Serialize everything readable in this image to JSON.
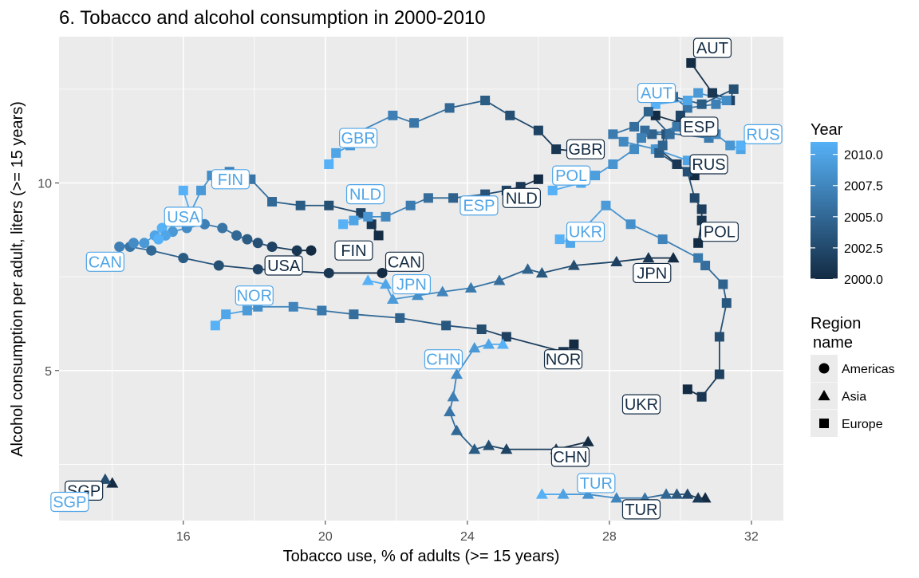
{
  "chart_data": {
    "type": "scatter",
    "title": "6. Tobacco and alcohol consumption in 2000-2010",
    "xlabel": "Tobacco use, % of adults (>= 15 years)",
    "ylabel": "Alcohol consumption per adult, liters (>= 15 years)",
    "xlim": [
      12.5,
      32.9
    ],
    "ylim": [
      1.0,
      13.9
    ],
    "xticks": [
      16,
      20,
      24,
      28,
      32
    ],
    "yticks": [
      5,
      10
    ],
    "grid": true,
    "legend_position": "right",
    "legend": {
      "year_title": "Year",
      "year_ticks": [
        "2010.0",
        "2007.5",
        "2005.0",
        "2002.5",
        "2000.0"
      ],
      "year_range": [
        2000,
        2011
      ],
      "region_title_line1": "Region",
      "region_title_line2": "name",
      "regions": [
        {
          "name": "Americas",
          "shape": "circle"
        },
        {
          "name": "Asia",
          "shape": "triangle"
        },
        {
          "name": "Europe",
          "shape": "square"
        }
      ]
    },
    "colors": {
      "start": "#132b43",
      "end": "#56b1f7",
      "panel": "#ebebeb",
      "grid": "#ffffff"
    },
    "series": [
      {
        "label": "AUT",
        "shape": "square",
        "points": [
          [
            30.3,
            13.2
          ],
          [
            30.9,
            12.4
          ],
          [
            31.4,
            12.2
          ],
          [
            31.5,
            12.5
          ],
          [
            30.6,
            12.1
          ],
          [
            29.8,
            12.3
          ],
          [
            30.2,
            12.0
          ],
          [
            31.0,
            12.1
          ],
          [
            31.3,
            12.2
          ],
          [
            30.5,
            12.4
          ],
          [
            30.2,
            12.2
          ],
          [
            29.3,
            12.1
          ]
        ]
      },
      {
        "label": "RUS",
        "shape": "square",
        "points": [
          [
            30.4,
            10.2
          ],
          [
            29.9,
            10.5
          ],
          [
            29.4,
            10.9
          ],
          [
            29.6,
            11.3
          ],
          [
            29.2,
            11.3
          ],
          [
            29.0,
            11.4
          ],
          [
            30.8,
            11.2
          ],
          [
            31.0,
            11.3
          ],
          [
            31.4,
            11.0
          ],
          [
            31.7,
            10.9
          ],
          [
            31.7,
            11.0
          ]
        ]
      },
      {
        "label": "ESP",
        "shape": "square",
        "points": [
          [
            29.3,
            11.8
          ],
          [
            30.0,
            11.6
          ],
          [
            30.0,
            11.8
          ],
          [
            29.7,
            11.3
          ],
          [
            29.1,
            11.9
          ],
          [
            28.7,
            11.5
          ],
          [
            28.1,
            11.3
          ],
          [
            28.4,
            11.1
          ],
          [
            29.3,
            10.9
          ],
          [
            30.2,
            10.6
          ],
          [
            30.7,
            10.4
          ]
        ]
      },
      {
        "label": "GBR",
        "shape": "square",
        "points": [
          [
            27.5,
            10.8
          ],
          [
            26.5,
            10.9
          ],
          [
            26.0,
            11.4
          ],
          [
            25.2,
            11.8
          ],
          [
            24.5,
            12.2
          ],
          [
            23.5,
            12.0
          ],
          [
            22.5,
            11.6
          ],
          [
            21.9,
            11.8
          ],
          [
            20.8,
            11.3
          ],
          [
            20.7,
            11.0
          ],
          [
            20.3,
            10.8
          ],
          [
            20.1,
            10.5
          ]
        ]
      },
      {
        "label": "POL",
        "shape": "square",
        "points": [
          [
            30.5,
            8.4
          ],
          [
            30.6,
            9.0
          ],
          [
            30.6,
            9.3
          ],
          [
            30.4,
            9.6
          ],
          [
            30.2,
            10.3
          ],
          [
            29.4,
            10.8
          ],
          [
            29.5,
            11.0
          ],
          [
            29.7,
            11.3
          ],
          [
            29.9,
            11.5
          ],
          [
            28.9,
            11.2
          ],
          [
            28.7,
            10.9
          ],
          [
            28.1,
            10.5
          ],
          [
            27.6,
            10.2
          ],
          [
            27.2,
            10.0
          ],
          [
            26.4,
            9.8
          ]
        ]
      },
      {
        "label": "FIN",
        "shape": "square",
        "points": [
          [
            21.5,
            8.6
          ],
          [
            21.3,
            8.9
          ],
          [
            21.0,
            9.2
          ],
          [
            20.1,
            9.4
          ],
          [
            19.3,
            9.4
          ],
          [
            18.5,
            9.5
          ],
          [
            17.9,
            10.1
          ],
          [
            17.3,
            10.3
          ],
          [
            16.8,
            10.2
          ],
          [
            16.5,
            9.8
          ],
          [
            16.2,
            9.2
          ],
          [
            16.0,
            9.8
          ]
        ]
      },
      {
        "label": "NLD",
        "shape": "square",
        "points": [
          [
            26.0,
            10.1
          ],
          [
            25.5,
            9.9
          ],
          [
            25.1,
            9.8
          ],
          [
            24.5,
            9.7
          ],
          [
            23.6,
            9.6
          ],
          [
            22.9,
            9.6
          ],
          [
            22.4,
            9.4
          ],
          [
            21.7,
            9.1
          ],
          [
            21.2,
            9.1
          ],
          [
            20.8,
            9.0
          ],
          [
            20.5,
            8.9
          ]
        ]
      },
      {
        "label": "NOR",
        "shape": "square",
        "points": [
          [
            27.0,
            5.7
          ],
          [
            26.7,
            5.5
          ],
          [
            25.1,
            5.9
          ],
          [
            24.4,
            6.1
          ],
          [
            23.4,
            6.2
          ],
          [
            22.1,
            6.4
          ],
          [
            20.8,
            6.5
          ],
          [
            19.9,
            6.6
          ],
          [
            19.1,
            6.7
          ],
          [
            18.1,
            6.7
          ],
          [
            17.8,
            6.6
          ],
          [
            17.2,
            6.5
          ],
          [
            16.9,
            6.2
          ]
        ]
      },
      {
        "label": "UKR",
        "shape": "square",
        "points": [
          [
            30.2,
            4.5
          ],
          [
            30.6,
            4.3
          ],
          [
            31.1,
            4.9
          ],
          [
            31.1,
            5.9
          ],
          [
            31.3,
            6.8
          ],
          [
            31.2,
            7.3
          ],
          [
            30.7,
            7.8
          ],
          [
            30.5,
            8.0
          ],
          [
            29.5,
            8.5
          ],
          [
            28.6,
            8.9
          ],
          [
            27.9,
            9.4
          ],
          [
            26.9,
            8.4
          ],
          [
            26.6,
            8.5
          ]
        ]
      },
      {
        "label": "TUR",
        "shape": "triangle",
        "points": [
          [
            30.7,
            1.6
          ],
          [
            30.5,
            1.6
          ],
          [
            30.2,
            1.7
          ],
          [
            29.9,
            1.7
          ],
          [
            29.6,
            1.7
          ],
          [
            29.0,
            1.6
          ],
          [
            28.2,
            1.6
          ],
          [
            27.4,
            1.7
          ],
          [
            26.7,
            1.7
          ],
          [
            26.1,
            1.7
          ]
        ]
      },
      {
        "label": "JPN",
        "shape": "triangle",
        "points": [
          [
            29.8,
            8.0
          ],
          [
            29.1,
            8.0
          ],
          [
            28.2,
            7.9
          ],
          [
            27.0,
            7.8
          ],
          [
            26.1,
            7.6
          ],
          [
            25.7,
            7.7
          ],
          [
            24.9,
            7.4
          ],
          [
            24.1,
            7.2
          ],
          [
            23.3,
            7.1
          ],
          [
            22.6,
            7.0
          ],
          [
            21.9,
            6.9
          ],
          [
            21.7,
            7.3
          ],
          [
            21.2,
            7.4
          ]
        ]
      },
      {
        "label": "CHN",
        "shape": "triangle",
        "points": [
          [
            27.4,
            3.1
          ],
          [
            26.5,
            2.9
          ],
          [
            25.1,
            2.9
          ],
          [
            24.6,
            3.0
          ],
          [
            24.2,
            2.9
          ],
          [
            23.7,
            3.4
          ],
          [
            23.5,
            3.9
          ],
          [
            23.6,
            4.3
          ],
          [
            23.7,
            4.9
          ],
          [
            24.2,
            5.6
          ],
          [
            24.6,
            5.7
          ],
          [
            25.0,
            5.7
          ]
        ]
      },
      {
        "label": "SGP",
        "shape": "triangle",
        "points": [
          [
            14.0,
            2.0
          ],
          [
            13.8,
            2.1
          ],
          [
            13.1,
            1.7
          ],
          [
            12.6,
            1.6
          ],
          [
            12.9,
            1.8
          ]
        ]
      },
      {
        "label": "CAN",
        "shape": "circle",
        "points": [
          [
            21.6,
            7.6
          ],
          [
            20.1,
            7.6
          ],
          [
            18.1,
            7.7
          ],
          [
            17.0,
            7.8
          ],
          [
            16.0,
            8.0
          ],
          [
            15.1,
            8.2
          ],
          [
            14.5,
            8.3
          ],
          [
            14.2,
            8.3
          ],
          [
            14.6,
            8.4
          ],
          [
            14.9,
            8.4
          ],
          [
            15.2,
            8.6
          ],
          [
            15.4,
            8.8
          ]
        ]
      },
      {
        "label": "USA",
        "shape": "circle",
        "points": [
          [
            19.6,
            8.2
          ],
          [
            19.2,
            8.2
          ],
          [
            18.5,
            8.3
          ],
          [
            18.1,
            8.4
          ],
          [
            17.8,
            8.5
          ],
          [
            17.5,
            8.6
          ],
          [
            17.1,
            8.8
          ],
          [
            16.6,
            8.9
          ],
          [
            16.1,
            8.8
          ],
          [
            15.7,
            8.7
          ],
          [
            15.5,
            8.6
          ],
          [
            15.3,
            8.5
          ]
        ]
      }
    ],
    "labels": [
      {
        "text": "AUT",
        "x": 30.9,
        "y": 13.6,
        "year": 2000,
        "anchor": "middle"
      },
      {
        "text": "AUT",
        "x": 28.8,
        "y": 12.4,
        "year": 2010,
        "anchor": "start"
      },
      {
        "text": "RUS",
        "x": 31.8,
        "y": 11.3,
        "year": 2010,
        "anchor": "start"
      },
      {
        "text": "ESP",
        "x": 30.0,
        "y": 11.5,
        "year": 2000,
        "anchor": "start"
      },
      {
        "text": "RUS",
        "x": 30.8,
        "y": 10.5,
        "year": 2000,
        "anchor": "middle"
      },
      {
        "text": "GBR",
        "x": 26.8,
        "y": 10.9,
        "year": 2000,
        "anchor": "start"
      },
      {
        "text": "GBR",
        "x": 20.4,
        "y": 11.2,
        "year": 2010,
        "anchor": "start"
      },
      {
        "text": "POL",
        "x": 26.4,
        "y": 10.2,
        "year": 2010,
        "anchor": "start"
      },
      {
        "text": "POL",
        "x": 31.1,
        "y": 8.7,
        "year": 2000,
        "anchor": "middle"
      },
      {
        "text": "FIN",
        "x": 16.8,
        "y": 10.1,
        "year": 2010,
        "anchor": "start"
      },
      {
        "text": "FIN",
        "x": 20.8,
        "y": 8.2,
        "year": 2000,
        "anchor": "middle"
      },
      {
        "text": "NLD",
        "x": 20.6,
        "y": 9.7,
        "year": 2010,
        "anchor": "start"
      },
      {
        "text": "NLD",
        "x": 25.0,
        "y": 9.6,
        "year": 2000,
        "anchor": "start"
      },
      {
        "text": "ESP",
        "x": 23.8,
        "y": 9.4,
        "year": 2010,
        "anchor": "start"
      },
      {
        "text": "UKR",
        "x": 26.8,
        "y": 8.7,
        "year": 2010,
        "anchor": "start"
      },
      {
        "text": "UKR",
        "x": 28.9,
        "y": 4.1,
        "year": 2000,
        "anchor": "middle"
      },
      {
        "text": "USA",
        "x": 16.0,
        "y": 9.1,
        "year": 2010,
        "anchor": "middle"
      },
      {
        "text": "USA",
        "x": 18.3,
        "y": 7.8,
        "year": 2000,
        "anchor": "start"
      },
      {
        "text": "CAN",
        "x": 13.8,
        "y": 7.9,
        "year": 2010,
        "anchor": "middle"
      },
      {
        "text": "CAN",
        "x": 21.7,
        "y": 7.9,
        "year": 2000,
        "anchor": "start"
      },
      {
        "text": "NOR",
        "x": 18.0,
        "y": 7.0,
        "year": 2010,
        "anchor": "middle"
      },
      {
        "text": "NOR",
        "x": 26.7,
        "y": 5.3,
        "year": 2000,
        "anchor": "middle"
      },
      {
        "text": "JPN",
        "x": 21.9,
        "y": 7.3,
        "year": 2010,
        "anchor": "start"
      },
      {
        "text": "JPN",
        "x": 29.2,
        "y": 7.6,
        "year": 2000,
        "anchor": "middle"
      },
      {
        "text": "CHN",
        "x": 22.8,
        "y": 5.3,
        "year": 2010,
        "anchor": "start"
      },
      {
        "text": "CHN",
        "x": 26.9,
        "y": 2.7,
        "year": 2000,
        "anchor": "middle"
      },
      {
        "text": "TUR",
        "x": 27.1,
        "y": 2.0,
        "year": 2010,
        "anchor": "start"
      },
      {
        "text": "TUR",
        "x": 28.9,
        "y": 1.3,
        "year": 2000,
        "anchor": "middle"
      },
      {
        "text": "SGP",
        "x": 13.2,
        "y": 1.8,
        "year": 2000,
        "anchor": "middle"
      },
      {
        "text": "SGP",
        "x": 12.8,
        "y": 1.5,
        "year": 2010,
        "anchor": "middle"
      }
    ]
  }
}
